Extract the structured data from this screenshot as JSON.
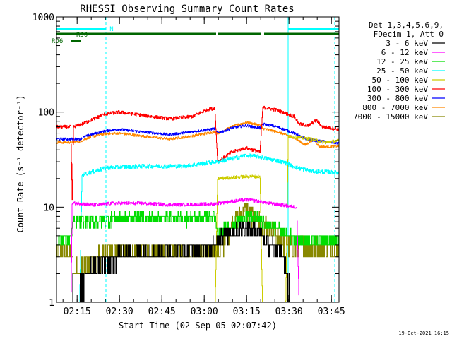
{
  "chart_data": {
    "type": "line",
    "title": "RHESSI Observing Summary Count Rates",
    "xlabel": "Start Time (02-Sep-05 02:07:42)",
    "ylabel": "Count Rate (s⁻¹ detector⁻¹)",
    "y_scale": "log",
    "ylim": [
      1,
      1000
    ],
    "xlim_minutes_from_start": [
      0,
      100
    ],
    "y_ticks": [
      {
        "value": 1,
        "label": "1"
      },
      {
        "value": 10,
        "label": "10"
      },
      {
        "value": 100,
        "label": "100"
      },
      {
        "value": 1000,
        "label": "1000"
      }
    ],
    "x_ticks": [
      {
        "minute": 7.3,
        "label": "02:15"
      },
      {
        "minute": 22.3,
        "label": "02:30"
      },
      {
        "minute": 37.3,
        "label": "02:45"
      },
      {
        "minute": 52.3,
        "label": "03:00"
      },
      {
        "minute": 67.3,
        "label": "03:15"
      },
      {
        "minute": 82.3,
        "label": "03:30"
      },
      {
        "minute": 97.3,
        "label": "03:45"
      }
    ],
    "legend": {
      "position": "right",
      "header": [
        "Det 1,3,4,5,6,9,",
        "FDecim 1, Att 0"
      ],
      "entries": [
        {
          "label": "3 - 6 keV",
          "color": "#000000"
        },
        {
          "label": "6 - 12 keV",
          "color": "#ff00ff"
        },
        {
          "label": "12 - 25 keV",
          "color": "#00dd00"
        },
        {
          "label": "25 - 50 keV",
          "color": "#00ffff"
        },
        {
          "label": "50 - 100 keV",
          "color": "#cccc00"
        },
        {
          "label": "100 - 300 keV",
          "color": "#ff0000"
        },
        {
          "label": "300 - 800 keV",
          "color": "#0000ff"
        },
        {
          "label": "800 - 7000 keV",
          "color": "#ff8800"
        },
        {
          "label": "7000 - 15000 keV",
          "color": "#888800"
        }
      ]
    },
    "annotations": [
      {
        "label": "N",
        "color": "#00ffff",
        "kind": "night",
        "start": 0,
        "end": 17.5
      },
      {
        "label": "RD0",
        "color": "#006600",
        "kind": "flag",
        "start": 0,
        "end": 0
      },
      {
        "label": "RD6",
        "color": "#006600",
        "kind": "flag",
        "start": 5,
        "end": 8.5
      }
    ],
    "flag_bars": [
      {
        "name": "night",
        "color": "#00ffff",
        "segments": [
          [
            0,
            17.5
          ],
          [
            82,
            100
          ]
        ]
      },
      {
        "name": "rd0",
        "color": "#006600",
        "segments": [
          [
            0,
            56.5
          ],
          [
            57,
            72.5
          ],
          [
            73.5,
            100
          ]
        ]
      },
      {
        "name": "rd6",
        "color": "#006600",
        "segments": [
          [
            5,
            8.5
          ]
        ]
      }
    ],
    "vlines": [
      {
        "minute": 0,
        "style": "solid",
        "color": "#00ffff"
      },
      {
        "minute": 17.5,
        "style": "dashed",
        "color": "#00ffff"
      },
      {
        "minute": 82,
        "style": "solid",
        "color": "#00ffff"
      },
      {
        "minute": 98.5,
        "style": "dashed",
        "color": "#00ffff"
      }
    ],
    "series": [
      {
        "name": "3 - 6 keV",
        "color": "#000000",
        "noise": 0.2,
        "quant": 1,
        "knots": [
          [
            0,
            1.2
          ],
          [
            8,
            1.3
          ],
          [
            12,
            2.4
          ],
          [
            17,
            2.6
          ],
          [
            18,
            2.7
          ],
          [
            25,
            3.4
          ],
          [
            35,
            3.2
          ],
          [
            45,
            3.6
          ],
          [
            56,
            3.8
          ],
          [
            57,
            5.0
          ],
          [
            62,
            5.5
          ],
          [
            67,
            6.0
          ],
          [
            72,
            5.5
          ],
          [
            73,
            4.8
          ],
          [
            80,
            3.2
          ],
          [
            82,
            1.5
          ],
          [
            84,
            0.9
          ]
        ]
      },
      {
        "name": "6 - 12 keV",
        "color": "#ff00ff",
        "noise": 0.04,
        "quant": 0,
        "knots": [
          [
            0,
            0.6
          ],
          [
            5,
            0.6
          ],
          [
            5.5,
            11
          ],
          [
            8,
            11
          ],
          [
            13,
            10.5
          ],
          [
            20,
            11
          ],
          [
            30,
            11
          ],
          [
            40,
            10.6
          ],
          [
            56,
            10.8
          ],
          [
            57,
            11
          ],
          [
            67,
            12
          ],
          [
            72,
            11.5
          ],
          [
            75,
            11
          ],
          [
            80,
            10.5
          ],
          [
            85,
            10
          ],
          [
            86,
            0.6
          ]
        ]
      },
      {
        "name": "12 - 25 keV",
        "color": "#00dd00",
        "noise": 0.15,
        "quant": 1,
        "knots": [
          [
            0,
            4.5
          ],
          [
            5,
            4.8
          ],
          [
            6,
            7.0
          ],
          [
            12,
            7.0
          ],
          [
            18,
            7.5
          ],
          [
            30,
            7.8
          ],
          [
            45,
            7.6
          ],
          [
            56,
            7.8
          ],
          [
            57,
            5.2
          ],
          [
            62,
            6.5
          ],
          [
            67,
            8.0
          ],
          [
            72,
            7.5
          ],
          [
            73,
            6.8
          ],
          [
            78,
            6.0
          ],
          [
            82,
            5.0
          ],
          [
            86,
            4.6
          ],
          [
            100,
            4.4
          ]
        ]
      },
      {
        "name": "25 - 50 keV",
        "color": "#00ffff",
        "noise": 0.05,
        "quant": 0,
        "knots": [
          [
            0,
            0.6
          ],
          [
            8,
            0.6
          ],
          [
            9,
            22
          ],
          [
            18,
            26
          ],
          [
            30,
            27
          ],
          [
            45,
            27
          ],
          [
            56,
            30
          ],
          [
            57,
            30
          ],
          [
            67,
            35
          ],
          [
            72,
            34
          ],
          [
            73,
            33
          ],
          [
            80,
            30
          ],
          [
            85,
            26
          ],
          [
            90,
            24
          ],
          [
            100,
            23
          ]
        ]
      },
      {
        "name": "50 - 100 keV",
        "color": "#cccc00",
        "noise": 0.04,
        "quant": 0,
        "knots": [
          [
            0,
            0.6
          ],
          [
            56,
            0.6
          ],
          [
            57,
            20
          ],
          [
            67,
            21
          ],
          [
            72,
            21
          ],
          [
            73,
            0.6
          ],
          [
            81,
            0.6
          ],
          [
            82,
            56
          ],
          [
            90,
            52
          ],
          [
            95,
            48
          ],
          [
            100,
            50
          ]
        ]
      },
      {
        "name": "100 - 300 keV",
        "color": "#ff0000",
        "noise": 0.04,
        "quant": 0,
        "knots": [
          [
            0,
            70
          ],
          [
            5,
            70
          ],
          [
            5.5,
            12
          ],
          [
            6,
            70
          ],
          [
            9,
            75
          ],
          [
            17,
            95
          ],
          [
            22,
            100
          ],
          [
            30,
            93
          ],
          [
            40,
            85
          ],
          [
            48,
            90
          ],
          [
            53,
            105
          ],
          [
            56,
            110
          ],
          [
            57,
            30
          ],
          [
            62,
            38
          ],
          [
            67,
            42
          ],
          [
            72,
            38
          ],
          [
            73,
            112
          ],
          [
            78,
            105
          ],
          [
            84,
            90
          ],
          [
            86,
            75
          ],
          [
            89,
            72
          ],
          [
            92,
            82
          ],
          [
            94,
            70
          ],
          [
            100,
            66
          ]
        ]
      },
      {
        "name": "300 - 800 keV",
        "color": "#0000ff",
        "noise": 0.03,
        "quant": 0,
        "knots": [
          [
            0,
            52
          ],
          [
            5,
            52
          ],
          [
            8,
            52
          ],
          [
            12,
            58
          ],
          [
            17,
            63
          ],
          [
            22,
            66
          ],
          [
            30,
            62
          ],
          [
            40,
            58
          ],
          [
            48,
            62
          ],
          [
            56,
            67
          ],
          [
            57,
            60
          ],
          [
            62,
            68
          ],
          [
            67,
            72
          ],
          [
            72,
            68
          ],
          [
            73,
            75
          ],
          [
            78,
            70
          ],
          [
            84,
            60
          ],
          [
            88,
            52
          ],
          [
            92,
            50
          ],
          [
            100,
            47
          ]
        ]
      },
      {
        "name": "800 - 7000 keV",
        "color": "#ff8800",
        "noise": 0.03,
        "quant": 0,
        "knots": [
          [
            0,
            48
          ],
          [
            5,
            48
          ],
          [
            8,
            49
          ],
          [
            12,
            55
          ],
          [
            17,
            59
          ],
          [
            22,
            60
          ],
          [
            30,
            56
          ],
          [
            40,
            52
          ],
          [
            48,
            56
          ],
          [
            56,
            62
          ],
          [
            57,
            60
          ],
          [
            62,
            70
          ],
          [
            67,
            78
          ],
          [
            72,
            73
          ],
          [
            73,
            67
          ],
          [
            78,
            62
          ],
          [
            84,
            54
          ],
          [
            88,
            45
          ],
          [
            91,
            52
          ],
          [
            93,
            43
          ],
          [
            100,
            44
          ]
        ]
      },
      {
        "name": "7000 - 15000 keV",
        "color": "#888800",
        "noise": 0.25,
        "quant": 1,
        "knots": [
          [
            0,
            3.6
          ],
          [
            5,
            3.5
          ],
          [
            6,
            2.0
          ],
          [
            10,
            2.5
          ],
          [
            15,
            3.0
          ],
          [
            18,
            3.6
          ],
          [
            30,
            3.5
          ],
          [
            45,
            3.4
          ],
          [
            56,
            3.6
          ],
          [
            57,
            3.2
          ],
          [
            62,
            6.5
          ],
          [
            67,
            9.5
          ],
          [
            72,
            7.0
          ],
          [
            76,
            5.5
          ],
          [
            82,
            4.0
          ],
          [
            90,
            3.8
          ],
          [
            100,
            3.5
          ]
        ]
      }
    ]
  },
  "footer": {
    "date_stamp": "19-Oct-2021 16:15"
  }
}
